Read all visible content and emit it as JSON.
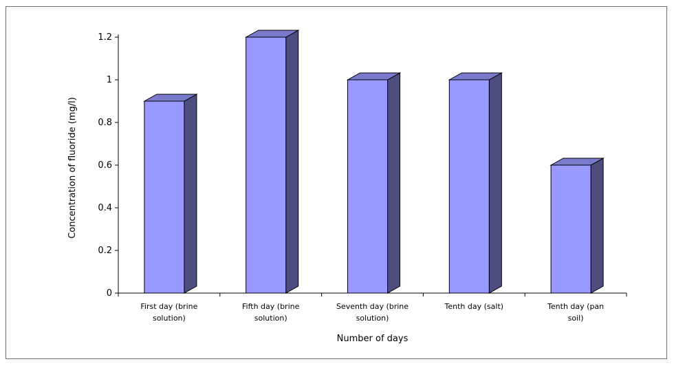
{
  "chart_data": {
    "type": "bar",
    "title": "",
    "xlabel": "Number of days",
    "ylabel": "Concentration of fluoride (mg/l)",
    "categories": [
      [
        "First day (brine",
        "solution)"
      ],
      [
        "Fifth day (brine",
        "solution)"
      ],
      [
        "Seventh day (brine",
        "solution)"
      ],
      [
        "Tenth day (salt)"
      ],
      [
        "Tenth day (pan",
        "soil)"
      ]
    ],
    "values": [
      0.9,
      1.2,
      1.0,
      1.0,
      0.6
    ],
    "ylim": [
      0,
      1.2
    ],
    "yticks": [
      "0",
      "0.2",
      "0.4",
      "0.6",
      "0.8",
      "1",
      "1.2"
    ],
    "grid": false,
    "legend": "none",
    "style": "3d-column",
    "colors": {
      "bar_front": "#9999ff",
      "bar_side": "#4d4d80",
      "bar_top": "#7a7acc",
      "outline": "#000000"
    }
  }
}
